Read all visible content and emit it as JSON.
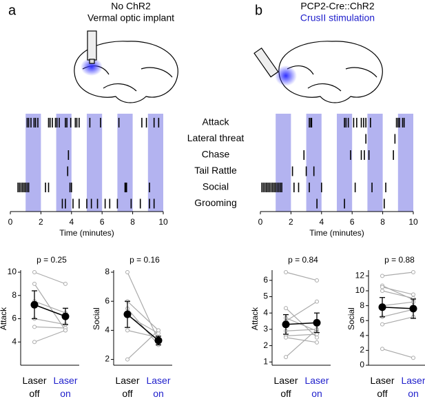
{
  "behaviors": [
    "Attack",
    "Lateral threat",
    "Chase",
    "Tail Rattle",
    "Social",
    "Grooming"
  ],
  "chart_data": [
    {
      "type": "raster",
      "panel": "a",
      "title": "No ChR2",
      "subtitle": "Vermal optic implant",
      "xlabel": "Time (minutes)",
      "xlim": [
        0,
        10
      ],
      "xticks": [
        0,
        2,
        4,
        6,
        8,
        10
      ],
      "bands": [
        [
          1,
          2
        ],
        [
          3,
          4
        ],
        [
          5,
          6
        ],
        [
          7,
          8
        ],
        [
          9,
          10
        ]
      ],
      "band_color": "#b3b3f0",
      "rows": [
        [
          1.1,
          1.2,
          1.35,
          1.55,
          1.65,
          1.8,
          2.5,
          2.6,
          2.75,
          2.95,
          3.05,
          3.2,
          3.6,
          3.7,
          3.95,
          4.25,
          4.35,
          4.5,
          5.2,
          5.9,
          7.1,
          8.6,
          8.9,
          9.4,
          9.7
        ],
        [],
        [
          3.8
        ],
        [
          3.75
        ],
        [
          0.5,
          0.6,
          0.7,
          0.8,
          0.9,
          1.0,
          1.1,
          1.2,
          2.3,
          2.5,
          3.9,
          4.0,
          7.5,
          7.55,
          7.6,
          9.1
        ],
        [
          3.4,
          3.6,
          4.1,
          4.5,
          5.0,
          5.3,
          5.7,
          6.2,
          6.5,
          7.0,
          7.9,
          8.5,
          9.1,
          9.4
        ]
      ]
    },
    {
      "type": "raster",
      "panel": "b",
      "title": "PCP2-Cre::ChR2",
      "subtitle": "CrusII stimulation",
      "subtitle_color": "#2020cc",
      "xlabel": "Time (minutes)",
      "xlim": [
        0,
        10
      ],
      "xticks": [
        0,
        2,
        4,
        6,
        8,
        10
      ],
      "bands": [
        [
          1,
          2
        ],
        [
          3,
          4
        ],
        [
          5,
          6
        ],
        [
          7,
          8
        ],
        [
          9,
          10
        ]
      ],
      "band_color": "#b3b3f0",
      "rows": [
        [
          3.2,
          3.3,
          3.35,
          5.5,
          5.6,
          5.75,
          6.1,
          6.3,
          6.6,
          6.75,
          6.9,
          7.2,
          8.9,
          9.0,
          9.1,
          9.3,
          9.4
        ],
        [
          6.9,
          8.8
        ],
        [
          2.85,
          5.9,
          6.6,
          6.8,
          7.1,
          8.7
        ],
        [
          2.1,
          3.0,
          3.5
        ],
        [
          0.1,
          0.2,
          0.3,
          0.4,
          0.5,
          0.6,
          0.7,
          0.8,
          0.9,
          1.0,
          1.1,
          1.2,
          1.3,
          1.4,
          2.2,
          2.5,
          3.2,
          4.0,
          6.2,
          7.3,
          8.2
        ],
        [
          3.7,
          5.5,
          8.1
        ]
      ]
    },
    {
      "type": "paired",
      "title": "p = 0.25",
      "ylabel": "Attack",
      "categories": [
        "Laser off",
        "Laser on"
      ],
      "category_colors": [
        "#000000",
        "#2020cc"
      ],
      "ylim": [
        2,
        10
      ],
      "yticks": [
        4,
        6,
        8,
        10
      ],
      "subjects": [
        [
          10,
          9
        ],
        [
          9,
          5
        ],
        [
          7.5,
          6.5
        ],
        [
          6,
          5.5
        ],
        [
          5.3,
          5.2
        ],
        [
          4,
          5
        ]
      ],
      "mean": [
        7.2,
        6.2
      ],
      "error": [
        1.2,
        0.7
      ]
    },
    {
      "type": "paired",
      "title": "p = 0.16",
      "ylabel": "Social",
      "categories": [
        "Laser off",
        "Laser on"
      ],
      "category_colors": [
        "#000000",
        "#2020cc"
      ],
      "ylim": [
        1.6,
        8
      ],
      "yticks": [
        2,
        4,
        6,
        8
      ],
      "subjects": [
        [
          8,
          3.3
        ],
        [
          6,
          4
        ],
        [
          5.5,
          3
        ],
        [
          5,
          3.8
        ],
        [
          4,
          3.5
        ],
        [
          2,
          4
        ]
      ],
      "mean": [
        5.1,
        3.3
      ],
      "error": [
        0.9,
        0.3
      ]
    },
    {
      "type": "paired",
      "title": "p = 0.84",
      "ylabel": "Attack",
      "categories": [
        "Laser off",
        "Laser on"
      ],
      "category_colors": [
        "#000000",
        "#2020cc"
      ],
      "ylim": [
        0.8,
        6.5
      ],
      "yticks": [
        1,
        2,
        3,
        4,
        5,
        6
      ],
      "subjects": [
        [
          6.5,
          6
        ],
        [
          4.3,
          2.5
        ],
        [
          3.7,
          2.9
        ],
        [
          3.5,
          4.7
        ],
        [
          2.9,
          3
        ],
        [
          2.6,
          2.7
        ],
        [
          2.5,
          2.2
        ],
        [
          1.3,
          3
        ]
      ],
      "mean": [
        3.3,
        3.4
      ],
      "error": [
        0.6,
        0.6
      ]
    },
    {
      "type": "paired",
      "title": "p = 0.88",
      "ylabel": "Social",
      "categories": [
        "Laser off",
        "Laser on"
      ],
      "category_colors": [
        "#000000",
        "#2020cc"
      ],
      "ylim": [
        0,
        12.5
      ],
      "yticks": [
        0,
        2,
        4,
        6,
        8,
        10,
        12
      ],
      "subjects": [
        [
          12,
          12.5
        ],
        [
          10.7,
          8.8
        ],
        [
          10.5,
          9.5
        ],
        [
          10,
          9
        ],
        [
          8,
          8.5
        ],
        [
          6.5,
          7.5
        ],
        [
          5.5,
          6.5
        ],
        [
          2.2,
          1
        ]
      ],
      "mean": [
        7.8,
        7.6
      ],
      "error": [
        1.3,
        1.3
      ]
    }
  ]
}
